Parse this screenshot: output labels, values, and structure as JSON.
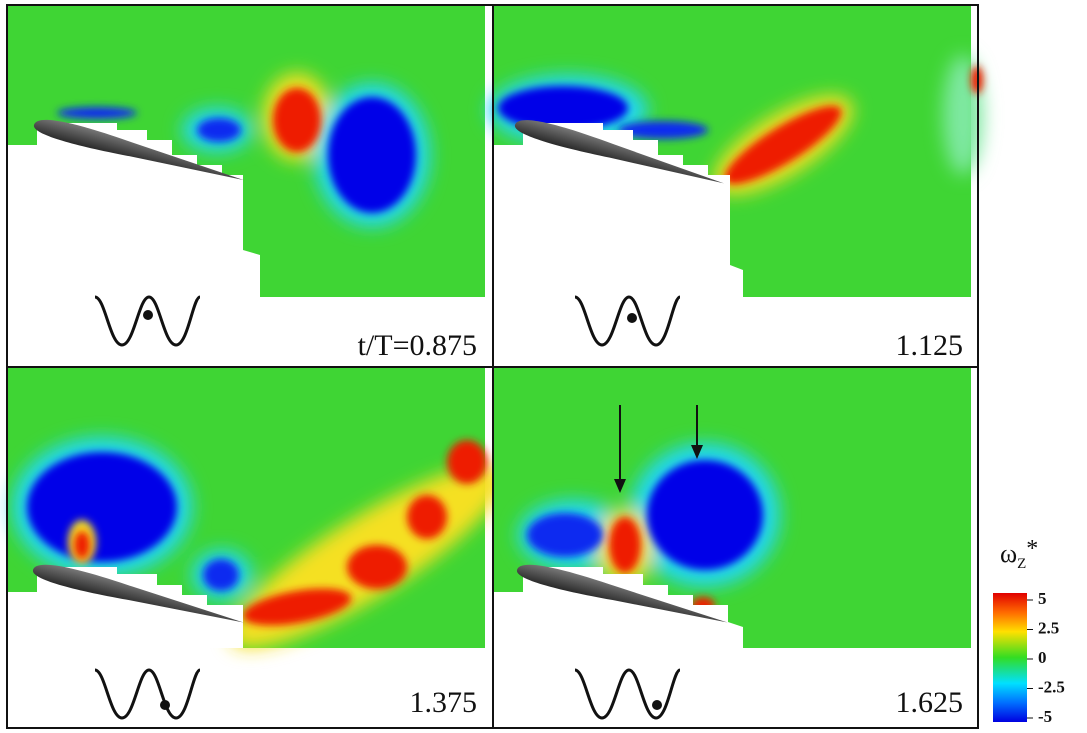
{
  "panels": [
    {
      "label": "t/T=0.875"
    },
    {
      "label": "1.125"
    },
    {
      "label": "1.375"
    },
    {
      "label": "1.625"
    }
  ],
  "colorbar": {
    "title": {
      "symbol": "ω",
      "subscript": "Z",
      "superscript": "*"
    },
    "lim": [
      -5,
      5
    ],
    "ticks": [
      5,
      2.5,
      0,
      -2.5,
      -5
    ]
  }
}
